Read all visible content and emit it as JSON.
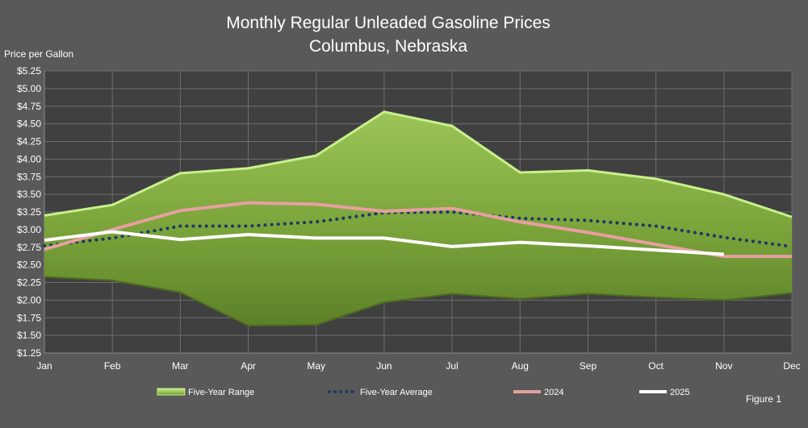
{
  "chart_data": {
    "type": "line",
    "title": "Monthly Regular Unleaded Gasoline Prices",
    "subtitle": "Columbus, Nebraska",
    "ylabel": "Price per Gallon",
    "xlabel": "",
    "categories": [
      "Jan",
      "Feb",
      "Mar",
      "Apr",
      "May",
      "Jun",
      "Jul",
      "Aug",
      "Sep",
      "Oct",
      "Nov",
      "Dec"
    ],
    "y_ticks": [
      "$1.25",
      "$1.50",
      "$1.75",
      "$2.00",
      "$2.25",
      "$2.50",
      "$2.75",
      "$3.00",
      "$3.25",
      "$3.50",
      "$3.75",
      "$4.00",
      "$4.25",
      "$4.50",
      "$4.75",
      "$5.00",
      "$5.25"
    ],
    "ylim": [
      1.25,
      5.25
    ],
    "grid": true,
    "legend_position": "bottom",
    "range": {
      "name": "Five-Year Range",
      "upper": [
        3.2,
        3.35,
        3.8,
        3.87,
        4.05,
        4.67,
        4.47,
        3.81,
        3.84,
        3.72,
        3.5,
        3.18
      ],
      "lower": [
        2.33,
        2.28,
        2.11,
        1.64,
        1.65,
        1.97,
        2.09,
        2.02,
        2.09,
        2.04,
        2.0,
        2.1
      ]
    },
    "series": [
      {
        "name": "Five-Year Average",
        "values": [
          2.77,
          2.88,
          3.05,
          3.05,
          3.11,
          3.24,
          3.25,
          3.16,
          3.13,
          3.05,
          2.89,
          2.76
        ]
      },
      {
        "name": "2024",
        "values": [
          2.72,
          3.0,
          3.27,
          3.38,
          3.36,
          3.26,
          3.3,
          3.11,
          2.96,
          2.79,
          2.62,
          2.62
        ]
      },
      {
        "name": "2025",
        "values": [
          2.85,
          2.97,
          2.86,
          2.93,
          2.88,
          2.88,
          2.76,
          2.82,
          2.77,
          2.71,
          2.65,
          null
        ]
      }
    ],
    "colors": {
      "background": "#595959",
      "plot_background": "#404040",
      "grid": "#6e6e6e",
      "range_fill": "#7da83c",
      "range_edge": "#c8f08c",
      "average": "#1f3864",
      "series_2024": "#e6a0a0",
      "series_2025": "#ffffff"
    }
  },
  "figure_label": "Figure 1"
}
